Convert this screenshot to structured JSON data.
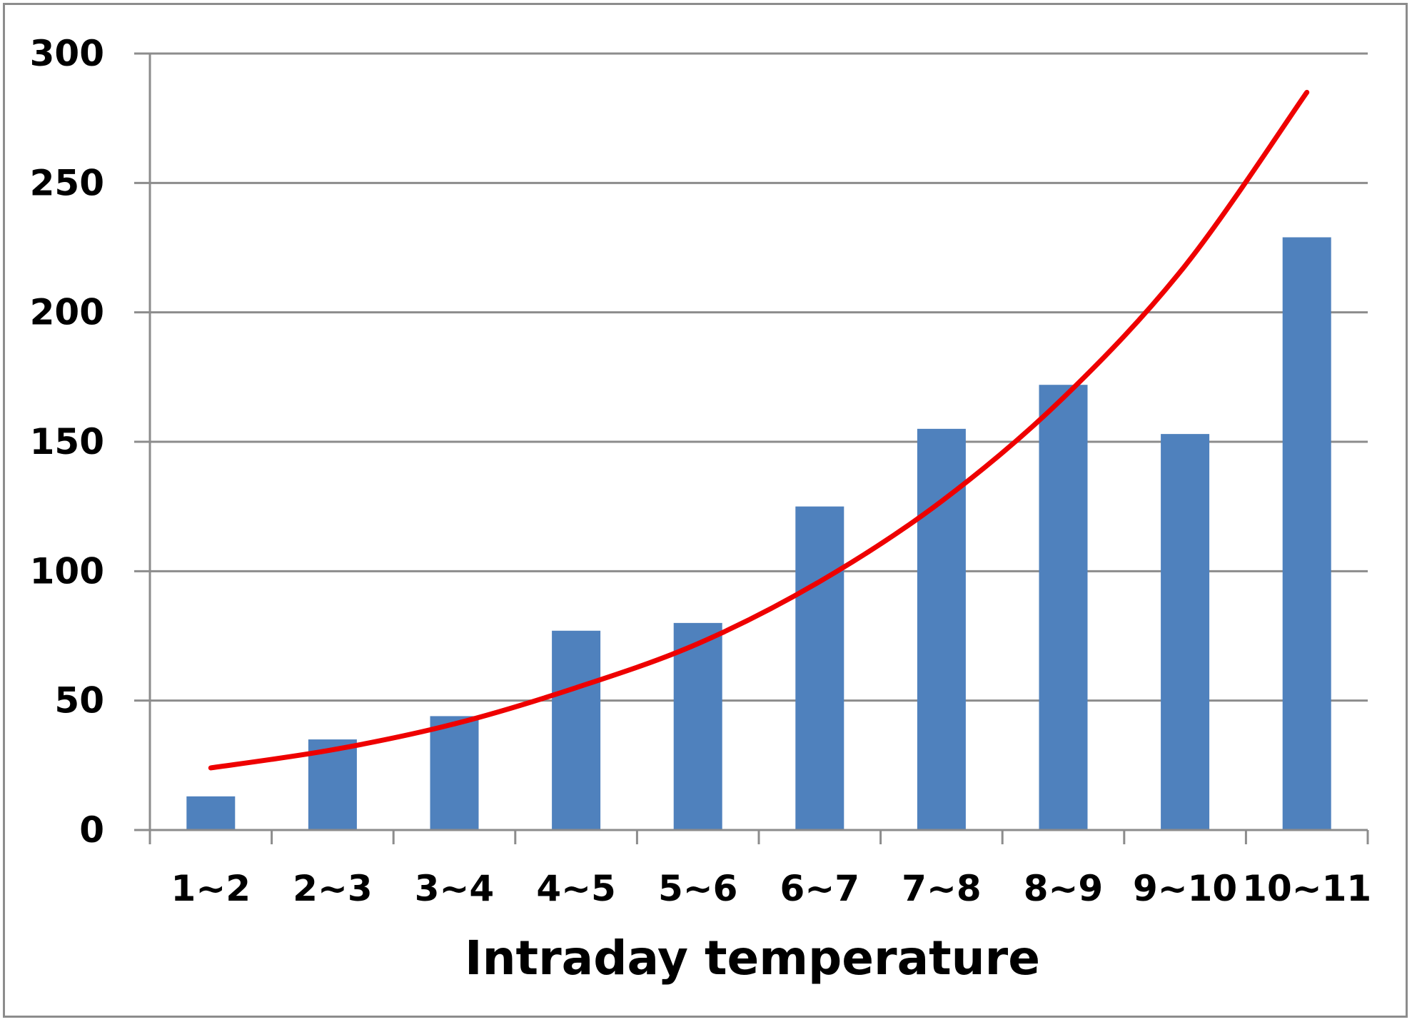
{
  "chart_data": {
    "type": "bar",
    "title": "",
    "xlabel": "Intraday temperature",
    "ylabel": "",
    "categories": [
      "1~2",
      "2~3",
      "3~4",
      "4~5",
      "5~6",
      "6~7",
      "7~8",
      "8~9",
      "9~10",
      "10~11"
    ],
    "series": [
      {
        "type": "bar",
        "values": [
          13,
          35,
          44,
          77,
          80,
          125,
          155,
          172,
          153,
          229
        ],
        "color": "#4f81bd"
      },
      {
        "type": "line",
        "curve": "exponential trend",
        "values": [
          24,
          31,
          41,
          55,
          72,
          96,
          127,
          167,
          218,
          285
        ],
        "color": "#ee0000"
      }
    ],
    "ylim": [
      0,
      300
    ],
    "yticks": [
      0,
      50,
      100,
      150,
      200,
      250,
      300
    ],
    "grid": true,
    "legend": "none",
    "colors": {
      "gridline": "#8c8c8c",
      "axis": "#8c8c8c",
      "frame": "#8c8c8c"
    }
  }
}
